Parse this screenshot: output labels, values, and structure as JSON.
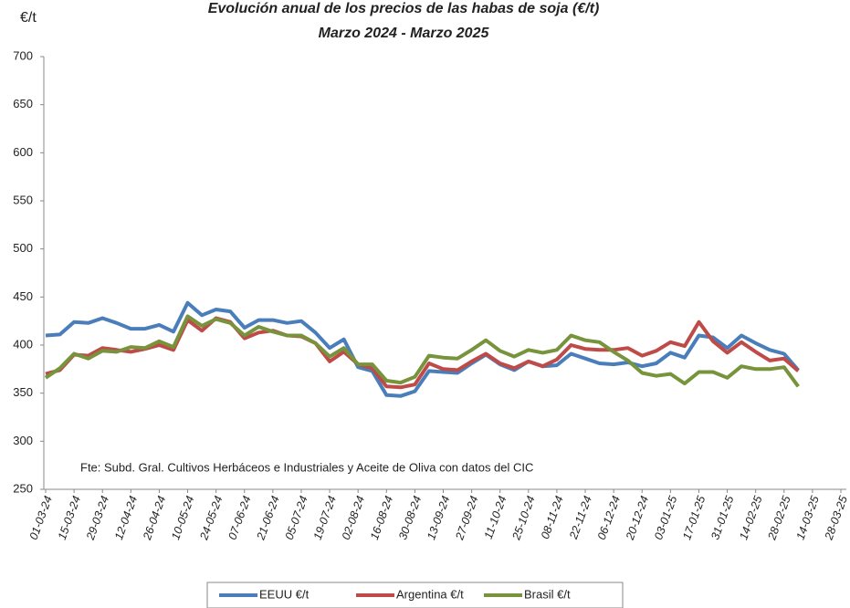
{
  "chart_data": {
    "type": "line",
    "title": "Evolución anual de los precios de las habas de soja (€/t)",
    "subtitle": "Marzo 2024 - Marzo 2025",
    "y_label": "€/t",
    "annotation": "Fte: Subd. Gral. Cultivos Herbáceos e Industriales y Aceite de Oliva con datos del CIC",
    "categories": [
      "01-03-24",
      null,
      "15-03-24",
      null,
      "29-03-24",
      null,
      "12-04-24",
      null,
      "26-04-24",
      null,
      "10-05-24",
      null,
      "24-05-24",
      null,
      "07-06-24",
      null,
      "21-06-24",
      null,
      "05-07-24",
      null,
      "19-07-24",
      null,
      "02-08-24",
      null,
      "16-08-24",
      null,
      "30-08-24",
      null,
      "13-09-24",
      null,
      "27-09-24",
      null,
      "11-10-24",
      null,
      "25-10-24",
      null,
      "08-11-24",
      null,
      "22-11-24",
      null,
      "06-12-24",
      null,
      "20-12-24",
      null,
      "03-01-25",
      null,
      "17-01-25",
      null,
      "31-01-25",
      null,
      "14-02-25",
      null,
      "28-02-25",
      null,
      "14-03-25",
      null,
      "28-03-25"
    ],
    "series": [
      {
        "name": "EEUU €/t",
        "color": "#4a7ebb",
        "values": [
          410,
          411,
          424,
          423,
          428,
          423,
          417,
          417,
          421,
          414,
          444,
          431,
          437,
          435,
          418,
          426,
          426,
          423,
          425,
          413,
          397,
          406,
          377,
          373,
          348,
          347,
          352,
          373,
          372,
          371,
          381,
          390,
          380,
          374,
          383,
          378,
          379,
          391,
          386,
          381,
          380,
          382,
          378,
          381,
          392,
          387,
          410,
          408,
          397,
          410,
          402,
          395,
          391,
          374,
          null,
          null,
          null
        ]
      },
      {
        "name": "Argentina €/t",
        "color": "#be4b48",
        "values": [
          370,
          374,
          390,
          389,
          397,
          395,
          393,
          396,
          400,
          395,
          426,
          415,
          428,
          424,
          407,
          413,
          415,
          410,
          409,
          402,
          383,
          393,
          380,
          376,
          357,
          356,
          359,
          381,
          375,
          374,
          383,
          391,
          381,
          376,
          383,
          378,
          385,
          400,
          396,
          395,
          395,
          397,
          389,
          394,
          403,
          399,
          424,
          404,
          392,
          403,
          393,
          384,
          386,
          373,
          null,
          null,
          null
        ]
      },
      {
        "name": "Brasil €/t",
        "color": "#77933c",
        "values": [
          366,
          376,
          391,
          386,
          394,
          393,
          398,
          397,
          404,
          398,
          430,
          420,
          427,
          423,
          410,
          419,
          414,
          410,
          410,
          402,
          388,
          397,
          380,
          380,
          363,
          361,
          367,
          389,
          387,
          386,
          395,
          405,
          394,
          388,
          395,
          392,
          395,
          410,
          405,
          403,
          393,
          384,
          371,
          368,
          370,
          360,
          372,
          372,
          366,
          378,
          375,
          375,
          377,
          357,
          null,
          null,
          null
        ]
      }
    ],
    "ylim": [
      250,
      700
    ],
    "yticks": [
      250,
      300,
      350,
      400,
      450,
      500,
      550,
      600,
      650,
      700
    ],
    "grid": false,
    "legend": "bottom"
  }
}
